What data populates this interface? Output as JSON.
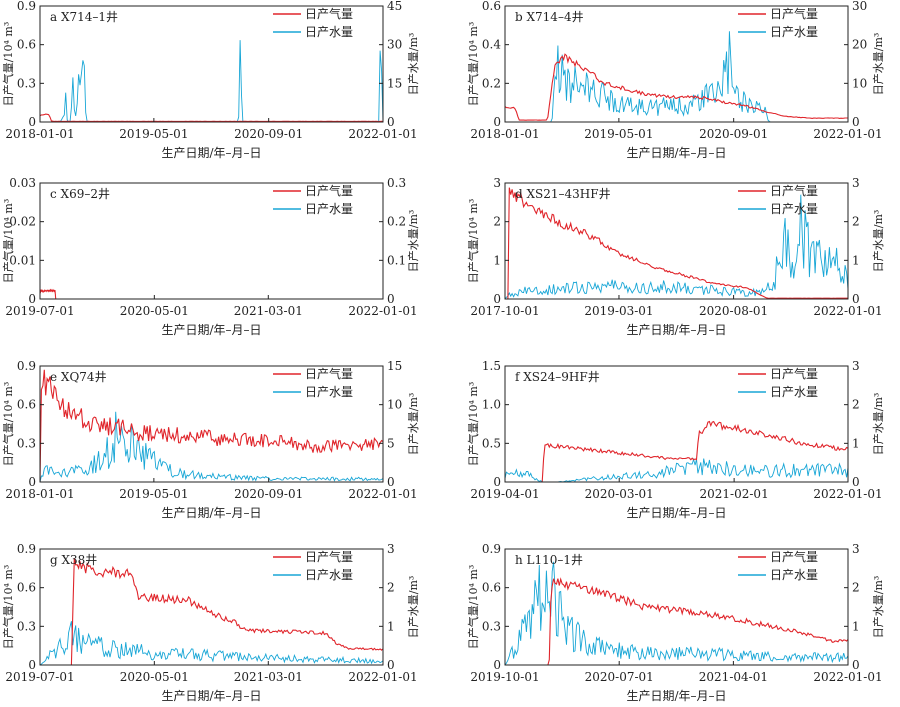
{
  "figure": {
    "legend_gas": "日产气量",
    "legend_water": "日产水量",
    "colors": {
      "gas": "#e0252b",
      "water": "#18a6d6",
      "axis": "#222222"
    }
  },
  "chart_data": [
    {
      "id": "a",
      "type": "line",
      "title": "a X714–1井",
      "xlabel": "生产日期/年–月–日",
      "ylabel_left": "日产气量/10⁴ m³",
      "ylabel_right": "日产水量/m³",
      "x_range": [
        "2018-01-01",
        "2022-01-01"
      ],
      "x_ticks": [
        "2018-01-01",
        "2019-05-01",
        "2020-09-01",
        "2022-01-01"
      ],
      "y_left_range": [
        0,
        0.9
      ],
      "y_left_ticks": [
        "0",
        "0.3",
        "0.6",
        "0.9"
      ],
      "y_right_range": [
        0,
        45
      ],
      "y_right_ticks": [
        "0",
        "15",
        "30",
        "45"
      ],
      "legend": [
        "日产气量",
        "日产水量"
      ],
      "legend_position": "top-right",
      "series": [
        {
          "name": "日产气量",
          "axis": "left",
          "x": [
            "2018-01-01",
            "2018-01-20",
            "2018-02-10",
            "2018-02-16",
            "2018-03-01",
            "2018-06-01",
            "2019-01-01",
            "2020-01-01",
            "2021-01-01",
            "2021-12-01",
            "2022-01-01"
          ],
          "values": [
            0.05,
            0.06,
            0.06,
            0.01,
            0.005,
            0.005,
            0.005,
            0.005,
            0.005,
            0.005,
            0.005
          ]
        },
        {
          "name": "日产水量",
          "axis": "right",
          "x": [
            "2018-01-01",
            "2018-04-01",
            "2018-04-20",
            "2018-04-28",
            "2018-05-10",
            "2018-05-20",
            "2018-06-05",
            "2018-06-20",
            "2018-06-28",
            "2018-07-10",
            "2018-07-20",
            "2018-10-01",
            "2019-10-01",
            "2020-04-25",
            "2020-05-03",
            "2020-05-10",
            "2021-06-01",
            "2021-12-14",
            "2021-12-22",
            "2022-01-01"
          ],
          "values": [
            0,
            0,
            8,
            0,
            0,
            13,
            0,
            30,
            42,
            16,
            0,
            0,
            0,
            0,
            33,
            0,
            0,
            0,
            33,
            0
          ]
        }
      ]
    },
    {
      "id": "b",
      "type": "line",
      "title": "b X714–4井",
      "xlabel": "生产日期/年–月–日",
      "ylabel_left": "日产气量/10⁴ m³",
      "ylabel_right": "日产水量/m³",
      "x_range": [
        "2018-01-01",
        "2022-01-01"
      ],
      "x_ticks": [
        "2018-01-01",
        "2019-05-01",
        "2020-09-01",
        "2022-01-01"
      ],
      "y_left_range": [
        0,
        0.6
      ],
      "y_left_ticks": [
        "0",
        "0.2",
        "0.4",
        "0.6"
      ],
      "y_right_range": [
        0,
        30
      ],
      "y_right_ticks": [
        "0",
        "10",
        "20",
        "30"
      ],
      "legend": [
        "日产气量",
        "日产水量"
      ],
      "legend_position": "top-right",
      "series": [
        {
          "name": "日产气量",
          "axis": "left",
          "x": [
            "2018-01-01",
            "2018-02-15",
            "2018-03-01",
            "2018-07-01",
            "2018-08-01",
            "2018-09-01",
            "2018-12-01",
            "2019-03-01",
            "2019-06-01",
            "2019-09-01",
            "2019-12-01",
            "2020-03-01",
            "2020-06-01",
            "2020-08-01",
            "2020-10-01",
            "2021-01-01",
            "2021-04-01",
            "2021-08-01",
            "2022-01-01"
          ],
          "values": [
            0.08,
            0.07,
            0.01,
            0.01,
            0.3,
            0.34,
            0.28,
            0.2,
            0.17,
            0.14,
            0.13,
            0.13,
            0.12,
            0.1,
            0.09,
            0.06,
            0.03,
            0.02,
            0.02
          ]
        },
        {
          "name": "日产水量",
          "axis": "right",
          "x": [
            "2018-01-01",
            "2018-07-20",
            "2018-08-01",
            "2018-10-01",
            "2019-01-01",
            "2019-04-01",
            "2019-07-01",
            "2019-10-01",
            "2020-01-01",
            "2020-04-01",
            "2020-07-01",
            "2020-08-15",
            "2020-09-01",
            "2020-11-01",
            "2021-01-01",
            "2021-02-01",
            "2022-01-01"
          ],
          "values": [
            0,
            0,
            14,
            10,
            8,
            6,
            4,
            4,
            4,
            5,
            8,
            15,
            7,
            5,
            4,
            0,
            0
          ]
        }
      ]
    },
    {
      "id": "c",
      "type": "line",
      "title": "c X69–2井",
      "xlabel": "生产日期/年–月–日",
      "ylabel_left": "日产气量/10⁴ m³",
      "ylabel_right": "日产水量/m³",
      "x_range": [
        "2019-07-01",
        "2022-01-01"
      ],
      "x_ticks": [
        "2019-07-01",
        "2020-05-01",
        "2021-03-01",
        "2022-01-01"
      ],
      "y_left_range": [
        0,
        0.03
      ],
      "y_left_ticks": [
        "0",
        "0.01",
        "0.02",
        "0.03"
      ],
      "y_right_range": [
        0,
        0.3
      ],
      "y_right_ticks": [
        "0",
        "0.1",
        "0.2",
        "0.3"
      ],
      "legend": [
        "日产气量",
        "日产水量"
      ],
      "legend_position": "top-right",
      "series": [
        {
          "name": "日产气量",
          "axis": "left",
          "x": [
            "2019-07-01",
            "2019-07-03",
            "2019-07-20",
            "2019-08-10",
            "2019-08-12"
          ],
          "values": [
            0.0015,
            0.002,
            0.0022,
            0.0022,
            0
          ]
        }
      ]
    },
    {
      "id": "d",
      "type": "line",
      "title": "d XS21–43HF井",
      "xlabel": "生产日期/年–月–日",
      "ylabel_left": "日产气量/10⁴ m³",
      "ylabel_right": "日产水量/m³",
      "x_range": [
        "2017-10-01",
        "2022-01-01"
      ],
      "x_ticks": [
        "2017-10-01",
        "2019-03-01",
        "2020-08-01",
        "2022-01-01"
      ],
      "y_left_range": [
        0,
        3
      ],
      "y_left_ticks": [
        "0",
        "1",
        "2",
        "3"
      ],
      "y_right_range": [
        0,
        3
      ],
      "y_right_ticks": [
        "0",
        "1",
        "2",
        "3"
      ],
      "legend": [
        "日产气量",
        "日产水量"
      ],
      "legend_position": "top-right",
      "series": [
        {
          "name": "日产气量",
          "axis": "left",
          "x": [
            "2017-10-01",
            "2017-10-18",
            "2017-10-20",
            "2018-01-01",
            "2018-04-01",
            "2018-07-01",
            "2018-10-01",
            "2019-01-01",
            "2019-04-01",
            "2019-07-01",
            "2019-10-01",
            "2020-01-01",
            "2020-04-01",
            "2020-07-01",
            "2020-10-01",
            "2020-12-01",
            "2021-01-01",
            "2022-01-01"
          ],
          "values": [
            0,
            0,
            2.8,
            2.5,
            2.2,
            1.9,
            1.7,
            1.4,
            1.1,
            0.9,
            0.75,
            0.6,
            0.45,
            0.35,
            0.3,
            0.1,
            0.02,
            0.02
          ]
        },
        {
          "name": "日产水量",
          "axis": "right",
          "x": [
            "2017-10-01",
            "2017-10-20",
            "2018-01-01",
            "2018-06-01",
            "2019-01-01",
            "2019-06-01",
            "2020-01-01",
            "2020-06-01",
            "2020-12-01",
            "2021-02-01",
            "2021-03-01",
            "2021-04-01",
            "2021-05-01",
            "2021-06-01",
            "2021-08-01",
            "2021-10-01",
            "2022-01-01"
          ],
          "values": [
            0,
            0.1,
            0.2,
            0.25,
            0.35,
            0.3,
            0.3,
            0.2,
            0.15,
            0.5,
            1.2,
            1.6,
            0.8,
            1.7,
            0.9,
            1.1,
            0.6
          ]
        }
      ]
    },
    {
      "id": "e",
      "type": "line",
      "title": "e XQ74井",
      "xlabel": "生产日期/年–月–日",
      "ylabel_left": "日产气量/10⁴ m³",
      "ylabel_right": "日产水量/m³",
      "x_range": [
        "2018-01-01",
        "2022-01-01"
      ],
      "x_ticks": [
        "2018-01-01",
        "2019-05-01",
        "2020-09-01",
        "2022-01-01"
      ],
      "y_left_range": [
        0,
        0.9
      ],
      "y_left_ticks": [
        "0",
        "0.3",
        "0.6",
        "0.9"
      ],
      "y_right_range": [
        0,
        15
      ],
      "y_right_ticks": [
        "0",
        "5",
        "10",
        "15"
      ],
      "legend": [
        "日产气量",
        "日产水量"
      ],
      "legend_position": "top-right",
      "series": [
        {
          "name": "日产气量",
          "axis": "left",
          "x": [
            "2018-01-01",
            "2018-01-05",
            "2018-01-10",
            "2018-03-01",
            "2018-06-01",
            "2018-09-01",
            "2018-12-01",
            "2019-03-01",
            "2019-06-01",
            "2019-09-01",
            "2019-12-01",
            "2020-03-01",
            "2020-06-01",
            "2020-09-01",
            "2020-12-01",
            "2021-03-01",
            "2021-06-01",
            "2021-09-01",
            "2022-01-01"
          ],
          "values": [
            0,
            0.85,
            0.8,
            0.65,
            0.5,
            0.45,
            0.42,
            0.38,
            0.38,
            0.36,
            0.35,
            0.33,
            0.33,
            0.32,
            0.3,
            0.27,
            0.28,
            0.29,
            0.3
          ]
        },
        {
          "name": "日产水量",
          "axis": "right",
          "x": [
            "2018-01-01",
            "2018-01-10",
            "2018-04-01",
            "2018-07-01",
            "2018-10-01",
            "2018-12-01",
            "2019-02-01",
            "2019-05-01",
            "2019-08-01",
            "2019-12-01",
            "2020-06-01",
            "2021-01-01",
            "2022-01-01"
          ],
          "values": [
            0,
            1.5,
            1,
            1.5,
            3,
            7,
            5,
            2.5,
            1.2,
            0.8,
            0.5,
            0.4,
            0.4
          ]
        }
      ]
    },
    {
      "id": "f",
      "type": "line",
      "title": "f XS24–9HF井",
      "xlabel": "生产日期/年–月–日",
      "ylabel_left": "日产气量/10⁴ m³",
      "ylabel_right": "日产水量/m³",
      "x_range": [
        "2019-04-01",
        "2022-01-01"
      ],
      "x_ticks": [
        "2019-04-01",
        "2020-03-01",
        "2021-02-01",
        "2022-01-01"
      ],
      "y_left_range": [
        0,
        1.5
      ],
      "y_left_ticks": [
        "0",
        "0.5",
        "1.0",
        "1.5"
      ],
      "y_right_range": [
        0,
        3
      ],
      "y_right_ticks": [
        "0",
        "1",
        "2",
        "3"
      ],
      "legend": [
        "日产气量",
        "日产水量"
      ],
      "legend_position": "top-right",
      "series": [
        {
          "name": "日产气量",
          "axis": "left",
          "x": [
            "2019-04-01",
            "2019-07-20",
            "2019-07-25",
            "2019-12-01",
            "2020-04-01",
            "2020-08-01",
            "2020-10-15",
            "2020-10-20",
            "2020-11-20",
            "2021-02-01",
            "2021-05-01",
            "2021-08-01",
            "2021-11-01",
            "2022-01-01"
          ],
          "values": [
            0,
            0,
            0.48,
            0.42,
            0.36,
            0.3,
            0.3,
            0.62,
            0.75,
            0.7,
            0.62,
            0.52,
            0.45,
            0.42
          ]
        },
        {
          "name": "日产水量",
          "axis": "right",
          "x": [
            "2019-04-01",
            "2019-06-01",
            "2019-07-20",
            "2019-09-01",
            "2020-01-01",
            "2020-06-01",
            "2020-10-20",
            "2021-01-01",
            "2021-06-01",
            "2022-01-01"
          ],
          "values": [
            0.2,
            0.2,
            0,
            0,
            0.1,
            0.2,
            0.4,
            0.35,
            0.3,
            0.3
          ]
        }
      ]
    },
    {
      "id": "g",
      "type": "line",
      "title": "g X38井",
      "xlabel": "生产日期/年–月–日",
      "ylabel_left": "日产气量/10⁴ m³",
      "ylabel_right": "日产水量/m³",
      "x_range": [
        "2019-07-01",
        "2022-01-01"
      ],
      "x_ticks": [
        "2019-07-01",
        "2020-05-01",
        "2021-03-01",
        "2022-01-01"
      ],
      "y_left_range": [
        0,
        0.9
      ],
      "y_left_ticks": [
        "0",
        "0.3",
        "0.6",
        "0.9"
      ],
      "y_right_range": [
        0,
        3
      ],
      "y_right_ticks": [
        "0",
        "1",
        "2",
        "3"
      ],
      "legend": [
        "日产气量",
        "日产水量"
      ],
      "legend_position": "top-right",
      "series": [
        {
          "name": "日产气量",
          "axis": "left",
          "x": [
            "2019-07-01",
            "2019-09-25",
            "2019-09-28",
            "2019-11-01",
            "2020-01-01",
            "2020-03-01",
            "2020-03-20",
            "2020-05-01",
            "2020-08-01",
            "2020-09-01",
            "2020-10-01",
            "2020-12-01",
            "2021-01-01",
            "2021-04-01",
            "2021-08-01",
            "2021-09-01",
            "2021-10-01",
            "2022-01-01"
          ],
          "values": [
            0,
            0,
            0.8,
            0.75,
            0.72,
            0.7,
            0.52,
            0.52,
            0.5,
            0.45,
            0.4,
            0.33,
            0.27,
            0.26,
            0.25,
            0.16,
            0.13,
            0.12
          ]
        },
        {
          "name": "日产水量",
          "axis": "right",
          "x": [
            "2019-07-01",
            "2019-10-01",
            "2020-01-01",
            "2020-06-01",
            "2021-01-01",
            "2021-06-01",
            "2022-01-01"
          ],
          "values": [
            0,
            0.8,
            0.4,
            0.3,
            0.2,
            0.15,
            0.1
          ]
        }
      ]
    },
    {
      "id": "h",
      "type": "line",
      "title": "h L110–1井",
      "xlabel": "生产日期/年–月–日",
      "ylabel_left": "日产气量/10⁴ m³",
      "ylabel_right": "日产水量/m³",
      "x_range": [
        "2019-10-01",
        "2022-01-01"
      ],
      "x_ticks": [
        "2019-10-01",
        "2020-07-01",
        "2021-04-01",
        "2022-01-01"
      ],
      "y_left_range": [
        0,
        0.9
      ],
      "y_left_ticks": [
        "0",
        "0.3",
        "0.6",
        "0.9"
      ],
      "y_right_range": [
        0,
        3
      ],
      "y_right_ticks": [
        "0",
        "1",
        "2",
        "3"
      ],
      "legend": [
        "日产气量",
        "日产水量"
      ],
      "legend_position": "top-right",
      "series": [
        {
          "name": "日产气量",
          "axis": "left",
          "x": [
            "2019-10-01",
            "2020-01-15",
            "2020-01-20",
            "2020-03-01",
            "2020-06-01",
            "2020-09-01",
            "2020-12-01",
            "2021-03-01",
            "2021-06-01",
            "2021-09-01",
            "2021-12-01",
            "2022-01-01"
          ],
          "values": [
            0,
            0,
            0.65,
            0.62,
            0.55,
            0.45,
            0.42,
            0.38,
            0.32,
            0.26,
            0.18,
            0.2
          ]
        },
        {
          "name": "日产水量",
          "axis": "right",
          "x": [
            "2019-10-01",
            "2020-01-20",
            "2020-02-15",
            "2020-04-01",
            "2020-06-01",
            "2020-09-01",
            "2021-01-01",
            "2021-06-01",
            "2021-09-01",
            "2022-01-01"
          ],
          "values": [
            0,
            2.2,
            1.2,
            0.6,
            0.4,
            0.3,
            0.3,
            0.25,
            0.2,
            0.2
          ]
        }
      ]
    }
  ]
}
